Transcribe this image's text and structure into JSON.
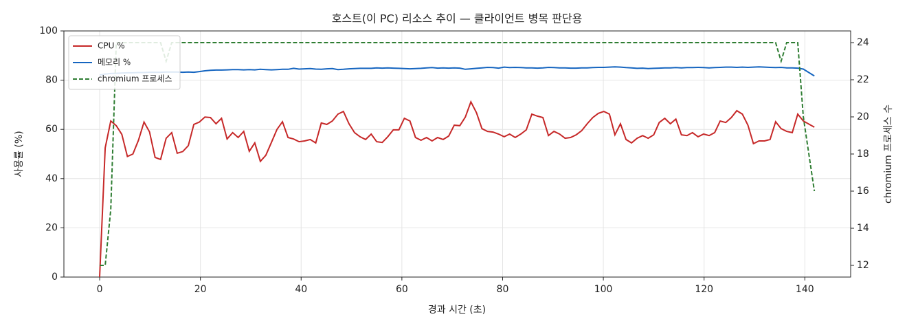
{
  "chart_data": {
    "type": "line",
    "title": "호스트(이 PC) 리소스 추이 — 클라이언트 병목 판단용",
    "x_label": "경과 시간 (초)",
    "y_label": "사용률 (%)",
    "y2_label": "chromium 프로세스 수",
    "xlim": [
      -7.1,
      149.1
    ],
    "xticks": [
      0,
      20,
      40,
      60,
      80,
      100,
      120,
      140
    ],
    "ylim": [
      0,
      100
    ],
    "yticks": [
      0,
      20,
      40,
      60,
      80,
      100
    ],
    "y2lim": [
      11.37,
      24.63
    ],
    "y2ticks": [
      12,
      14,
      16,
      18,
      20,
      22,
      24
    ],
    "grid": true,
    "legend": "upper left",
    "x": [
      0,
      1.1,
      2.2,
      3.3,
      4.4,
      5.5,
      6.6,
      7.7,
      8.8,
      9.9,
      11,
      12.1,
      13.2,
      14.3,
      15.4,
      16.5,
      17.6,
      18.7,
      19.8,
      20.9,
      22,
      23.1,
      24.2,
      25.3,
      26.4,
      27.5,
      28.6,
      29.7,
      30.8,
      31.9,
      33,
      34.1,
      35.2,
      36.3,
      37.4,
      38.5,
      39.6,
      40.7,
      41.8,
      42.9,
      44,
      45.1,
      46.2,
      47.3,
      48.4,
      49.5,
      50.6,
      51.7,
      52.8,
      53.9,
      55,
      56.1,
      57.2,
      58.3,
      59.4,
      60.5,
      61.6,
      62.7,
      63.8,
      64.9,
      66,
      67.1,
      68.2,
      69.3,
      70.4,
      71.5,
      72.6,
      73.7,
      74.8,
      75.9,
      77,
      78.1,
      79.2,
      80.3,
      81.4,
      82.5,
      83.6,
      84.7,
      85.8,
      86.9,
      88,
      89.1,
      90.2,
      91.3,
      92.4,
      93.5,
      94.6,
      95.7,
      96.8,
      97.9,
      99,
      100.1,
      101.2,
      102.3,
      103.4,
      104.5,
      105.6,
      106.7,
      107.8,
      108.9,
      110,
      111.1,
      112.2,
      113.3,
      114.4,
      115.5,
      116.6,
      117.7,
      118.8,
      119.9,
      121,
      122.1,
      123.2,
      124.3,
      125.4,
      126.5,
      127.6,
      128.7,
      129.8,
      130.9,
      132,
      133.1,
      134.2,
      135.3,
      136.4,
      137.5,
      138.6,
      139.7,
      141.9
    ],
    "series": [
      {
        "name": "CPU %",
        "color": "#c62828",
        "axis": "y",
        "dashed": false,
        "values": [
          0,
          52.5,
          63.4,
          61.5,
          58,
          49,
          50,
          55.6,
          63,
          59,
          48.6,
          47.8,
          56.4,
          58.7,
          50.3,
          51,
          53.4,
          62,
          63,
          65,
          64.8,
          62.3,
          64.5,
          56.1,
          58.7,
          56.7,
          59.2,
          51.1,
          54.5,
          47,
          49.5,
          54.7,
          60,
          63.1,
          56.7,
          56.1,
          55,
          55.3,
          55.9,
          54.5,
          62.6,
          62,
          63.4,
          66.2,
          67.3,
          62.3,
          58.7,
          57,
          55.9,
          58.1,
          55,
          54.7,
          57,
          59.8,
          59.8,
          64.5,
          63.4,
          56.7,
          55.6,
          56.7,
          55.3,
          56.7,
          55.9,
          57.3,
          61.7,
          61.5,
          65,
          71.2,
          66.8,
          60.3,
          59.2,
          58.9,
          58.1,
          57,
          58.1,
          56.7,
          58.1,
          59.8,
          66.2,
          65.4,
          64.8,
          57.5,
          59.2,
          58.1,
          56.4,
          56.7,
          57.8,
          59.5,
          62.3,
          64.8,
          66.5,
          67.3,
          66.2,
          57.8,
          62.3,
          55.9,
          54.5,
          56.4,
          57.5,
          56.4,
          57.8,
          62.8,
          64.5,
          62.3,
          64.2,
          57.8,
          57.5,
          58.7,
          57,
          58.1,
          57.5,
          58.7,
          63.4,
          62.8,
          64.8,
          67.6,
          66.2,
          61.7,
          54.2,
          55.3,
          55.3,
          55.9,
          63.1,
          60.3,
          59.2,
          58.7,
          66.2,
          63.4,
          60.9
        ]
      },
      {
        "name": "메모리 %",
        "color": "#1565c0",
        "axis": "y",
        "dashed": false,
        "values": [
          82.1,
          82.5,
          82.7,
          82.8,
          82.9,
          83.0,
          83.0,
          83.1,
          83.1,
          83.2,
          83.2,
          83.2,
          83.3,
          83.3,
          83.3,
          83.2,
          83.3,
          83.2,
          83.5,
          83.8,
          84.0,
          84.1,
          84.1,
          84.2,
          84.3,
          84.3,
          84.2,
          84.3,
          84.2,
          84.4,
          84.3,
          84.2,
          84.3,
          84.4,
          84.4,
          84.8,
          84.5,
          84.6,
          84.7,
          84.5,
          84.4,
          84.6,
          84.7,
          84.3,
          84.4,
          84.6,
          84.7,
          84.8,
          84.8,
          84.8,
          85.0,
          84.9,
          85.0,
          84.9,
          84.8,
          84.7,
          84.6,
          84.7,
          84.8,
          85.0,
          85.1,
          84.9,
          85.0,
          84.9,
          85.0,
          84.9,
          84.4,
          84.6,
          84.8,
          85.0,
          85.2,
          85.1,
          84.9,
          85.3,
          85.1,
          85.2,
          85.1,
          85.0,
          85.0,
          84.9,
          85.0,
          85.2,
          85.1,
          85.0,
          85.0,
          84.9,
          84.9,
          85.0,
          85.0,
          85.1,
          85.2,
          85.2,
          85.3,
          85.4,
          85.3,
          85.1,
          85.0,
          84.8,
          84.9,
          84.7,
          84.8,
          84.9,
          85.0,
          85.0,
          85.1,
          85.0,
          85.1,
          85.1,
          85.2,
          85.1,
          85.0,
          85.1,
          85.2,
          85.3,
          85.3,
          85.2,
          85.3,
          85.2,
          85.3,
          85.4,
          85.3,
          85.2,
          85.1,
          85.2,
          85.0,
          85.0,
          84.9,
          84.5,
          81.7
        ]
      },
      {
        "name": "chromium 프로세스",
        "color": "#2e7d32",
        "axis": "y2",
        "dashed": true,
        "values": [
          12,
          12,
          15,
          24,
          24,
          24,
          24,
          24,
          24,
          24,
          24,
          24,
          23,
          24,
          24,
          24,
          24,
          24,
          24,
          24,
          24,
          24,
          24,
          24,
          24,
          24,
          24,
          24,
          24,
          24,
          24,
          24,
          24,
          24,
          24,
          24,
          24,
          24,
          24,
          24,
          24,
          24,
          24,
          24,
          24,
          24,
          24,
          24,
          24,
          24,
          24,
          24,
          24,
          24,
          24,
          24,
          24,
          24,
          24,
          24,
          24,
          24,
          24,
          24,
          24,
          24,
          24,
          24,
          24,
          24,
          24,
          24,
          24,
          24,
          24,
          24,
          24,
          24,
          24,
          24,
          24,
          24,
          24,
          24,
          24,
          24,
          24,
          24,
          24,
          24,
          24,
          24,
          24,
          24,
          24,
          24,
          24,
          24,
          24,
          24,
          24,
          24,
          24,
          24,
          24,
          24,
          24,
          24,
          24,
          24,
          24,
          24,
          24,
          24,
          24,
          24,
          24,
          24,
          24,
          24,
          24,
          24,
          24,
          23,
          24,
          24,
          24,
          20,
          16
        ]
      }
    ]
  }
}
